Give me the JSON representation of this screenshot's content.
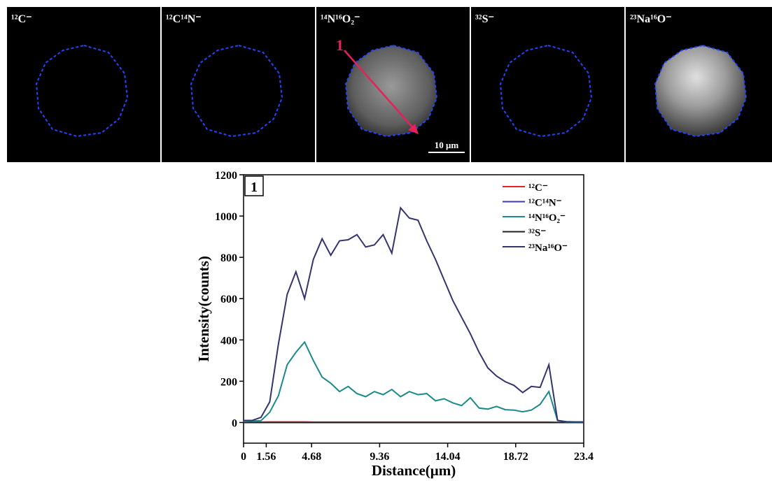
{
  "panels": [
    {
      "label": "¹²C⁻"
    },
    {
      "label": "¹²C¹⁴N⁻"
    },
    {
      "label": "¹⁴N¹⁶O₂⁻"
    },
    {
      "label": "³²S⁻"
    },
    {
      "label": "²³Na¹⁶O⁻"
    }
  ],
  "arrow_label": "1",
  "scale_bar": "10 μm",
  "chart_data": {
    "type": "line",
    "panel_label": "1",
    "x_label": "Distance(μm)",
    "y_label": "Intensity(counts)",
    "xlim": [
      0,
      23.4
    ],
    "xticks": [
      0,
      1.56,
      4.68,
      9.36,
      14.04,
      18.72,
      23.4
    ],
    "ylim": [
      -100,
      1200
    ],
    "yticks": [
      0,
      200,
      400,
      600,
      800,
      1000,
      1200
    ],
    "legend": "upper right",
    "x": [
      0,
      0.6,
      1.2,
      1.8,
      2.4,
      3,
      3.6,
      4.2,
      4.8,
      5.4,
      6,
      6.6,
      7.2,
      7.8,
      8.4,
      9,
      9.6,
      10.2,
      10.8,
      11.4,
      12,
      12.6,
      13.2,
      13.8,
      14.4,
      15,
      15.6,
      16.2,
      16.8,
      17.4,
      18,
      18.6,
      19.2,
      19.8,
      20.4,
      21,
      21.6,
      22.2,
      22.8,
      23.4
    ],
    "series": [
      {
        "name": "¹²C⁻",
        "color": "#e8202a",
        "values": [
          0,
          1,
          2,
          3,
          3,
          3,
          3,
          3,
          2,
          2,
          2,
          2,
          2,
          2,
          2,
          2,
          2,
          2,
          2,
          2,
          2,
          2,
          2,
          2,
          2,
          2,
          2,
          2,
          2,
          2,
          2,
          2,
          2,
          2,
          2,
          2,
          1,
          0,
          0,
          0
        ]
      },
      {
        "name": "¹²C¹⁴N⁻",
        "color": "#3b3ba8",
        "values": [
          0,
          0,
          0,
          0,
          0,
          0,
          0,
          0,
          0,
          0,
          0,
          0,
          0,
          0,
          0,
          0,
          0,
          0,
          0,
          0,
          0,
          0,
          0,
          0,
          0,
          0,
          0,
          0,
          0,
          0,
          0,
          0,
          0,
          0,
          0,
          0,
          0,
          0,
          0,
          0
        ]
      },
      {
        "name": "¹⁴N¹⁶O₂⁻",
        "color": "#1a8a8a",
        "values": [
          5,
          7,
          9,
          50,
          130,
          280,
          340,
          390,
          300,
          220,
          190,
          150,
          175,
          140,
          125,
          150,
          135,
          160,
          125,
          150,
          135,
          140,
          105,
          115,
          95,
          82,
          120,
          70,
          65,
          78,
          62,
          60,
          52,
          60,
          88,
          150,
          10,
          3,
          2,
          2
        ]
      },
      {
        "name": "³²S⁻",
        "color": "#222222",
        "values": [
          0,
          0,
          0,
          0,
          0,
          0,
          0,
          0,
          0,
          0,
          0,
          0,
          0,
          0,
          0,
          0,
          0,
          0,
          0,
          0,
          0,
          0,
          0,
          0,
          0,
          0,
          0,
          0,
          0,
          0,
          0,
          0,
          0,
          0,
          0,
          0,
          0,
          0,
          0,
          0
        ]
      },
      {
        "name": "²³Na¹⁶O⁻",
        "color": "#34346e",
        "values": [
          10,
          10,
          25,
          100,
          380,
          620,
          730,
          600,
          790,
          890,
          810,
          880,
          885,
          910,
          850,
          860,
          910,
          820,
          1040,
          990,
          980,
          880,
          790,
          690,
          590,
          510,
          430,
          340,
          265,
          225,
          198,
          180,
          145,
          175,
          170,
          280,
          10,
          4,
          3,
          3
        ]
      }
    ]
  }
}
